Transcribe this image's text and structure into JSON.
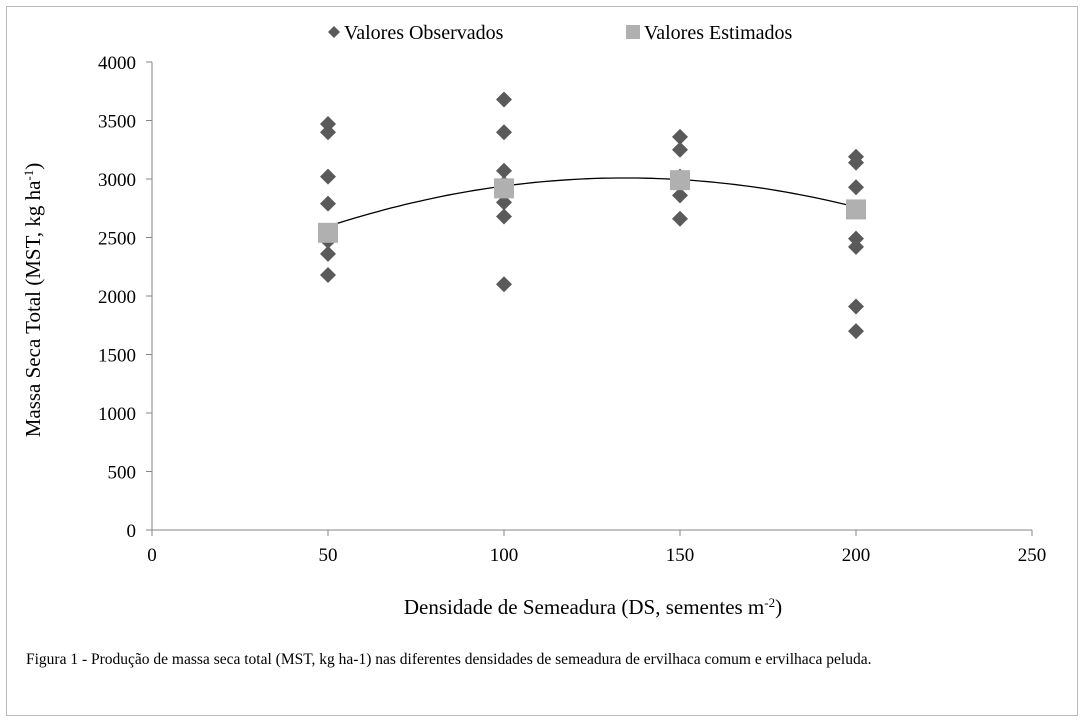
{
  "chart_data": {
    "type": "scatter",
    "xlabel": {
      "main": "Densidade de Semeadura (DS, sementes m",
      "sup": "-2",
      "end": ")"
    },
    "ylabel": {
      "main": "Massa Seca Total (MST, kg ha",
      "sup": "-1",
      "end": ")"
    },
    "xlim": [
      0,
      250
    ],
    "ylim": [
      0,
      4000
    ],
    "xticks": [
      "0",
      "50",
      "100",
      "150",
      "200",
      "250"
    ],
    "yticks": [
      "0",
      "500",
      "1000",
      "1500",
      "2000",
      "2500",
      "3000",
      "3500",
      "4000"
    ],
    "xtick_values": [
      0,
      50,
      100,
      150,
      200,
      250
    ],
    "ytick_values": [
      0,
      500,
      1000,
      1500,
      2000,
      2500,
      3000,
      3500,
      4000
    ],
    "legend_position": "top",
    "series": [
      {
        "name": "Valores Observados",
        "marker": "diamond",
        "color": "#5a5a5a",
        "points": [
          [
            50,
            3470
          ],
          [
            50,
            3400
          ],
          [
            50,
            3020
          ],
          [
            50,
            2790
          ],
          [
            50,
            2470
          ],
          [
            50,
            2360
          ],
          [
            50,
            2180
          ],
          [
            100,
            3680
          ],
          [
            100,
            3400
          ],
          [
            100,
            3070
          ],
          [
            100,
            2960
          ],
          [
            100,
            2800
          ],
          [
            100,
            2680
          ],
          [
            100,
            2100
          ],
          [
            150,
            3360
          ],
          [
            150,
            3250
          ],
          [
            150,
            3020
          ],
          [
            150,
            2860
          ],
          [
            150,
            2660
          ],
          [
            200,
            3190
          ],
          [
            200,
            3140
          ],
          [
            200,
            2930
          ],
          [
            200,
            2490
          ],
          [
            200,
            2420
          ],
          [
            200,
            1910
          ],
          [
            200,
            1700
          ]
        ]
      },
      {
        "name": "Valores Estimados",
        "marker": "square",
        "color": "#b0b0b0",
        "points": [
          [
            50,
            2540
          ],
          [
            100,
            2920
          ],
          [
            150,
            2990
          ],
          [
            200,
            2740
          ]
        ]
      }
    ],
    "trend": {
      "type": "quadratic",
      "coefficients": [
        1960,
        15.6,
        -0.058
      ],
      "x_range": [
        50,
        200
      ],
      "color": "#000000"
    }
  },
  "caption": {
    "label": "Figura 1 - ",
    "text": "Produção de massa seca total (MST, kg ha-1) nas diferentes densidades de semeadura de ervilhaca comum e ervilhaca peluda."
  }
}
